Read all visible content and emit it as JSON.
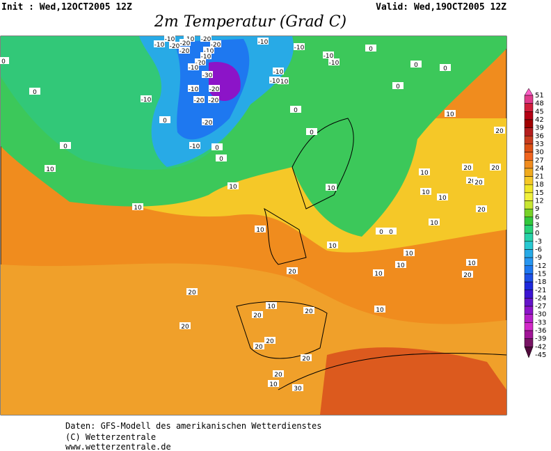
{
  "header": {
    "init": "Init : Wed,12OCT2005 12Z",
    "valid": "Valid: Wed,19OCT2005 12Z",
    "title": "2m Temperatur (Grad C)"
  },
  "colorbar": {
    "labels": [
      51,
      48,
      45,
      42,
      39,
      36,
      33,
      30,
      27,
      24,
      21,
      18,
      15,
      12,
      9,
      6,
      3,
      0,
      -3,
      -6,
      -9,
      -12,
      -15,
      -18,
      -21,
      -24,
      -27,
      -30,
      -33,
      -36,
      -39,
      -42,
      -45
    ],
    "colors": [
      "#ff60c8",
      "#e03c8c",
      "#d01e3c",
      "#b40014",
      "#a00000",
      "#b41e1e",
      "#c83c1e",
      "#dc5014",
      "#f0641e",
      "#f08c1e",
      "#f0aa1e",
      "#f5c828",
      "#f0e628",
      "#f0f03c",
      "#c8e632",
      "#78d228",
      "#32c83c",
      "#28d278",
      "#28d2aa",
      "#28c8d2",
      "#28aae6",
      "#2896f0",
      "#1e78f0",
      "#1e50e6",
      "#1e28dc",
      "#3c14d2",
      "#6414c8",
      "#8c14c8",
      "#b41ec8",
      "#d228c8",
      "#a01496",
      "#781464",
      "#500a3c"
    ]
  },
  "contour_labels": [
    -10,
    -10,
    -20,
    -10,
    -20,
    -20,
    -20,
    -20,
    -10,
    -10,
    -10,
    -10,
    -20,
    -10,
    -30,
    -10,
    -10,
    -10,
    -20,
    -20,
    -20,
    -20,
    -10,
    0,
    0,
    0,
    10,
    10,
    10,
    0,
    -10,
    0,
    0,
    0,
    -10,
    -10,
    0,
    0,
    0,
    0,
    -10,
    0,
    10,
    20,
    10,
    20,
    20,
    20,
    20,
    10,
    10,
    10,
    20,
    10,
    0,
    0,
    10,
    10,
    10,
    10,
    20,
    10,
    10,
    20,
    20,
    10,
    20,
    10,
    20,
    20,
    20,
    20,
    20,
    20,
    10,
    30
  ],
  "footer": [
    "Daten: GFS-Modell des amerikanischen Wetterdienstes",
    "(C) Wetterzentrale",
    "www.wetterzentrale.de"
  ]
}
